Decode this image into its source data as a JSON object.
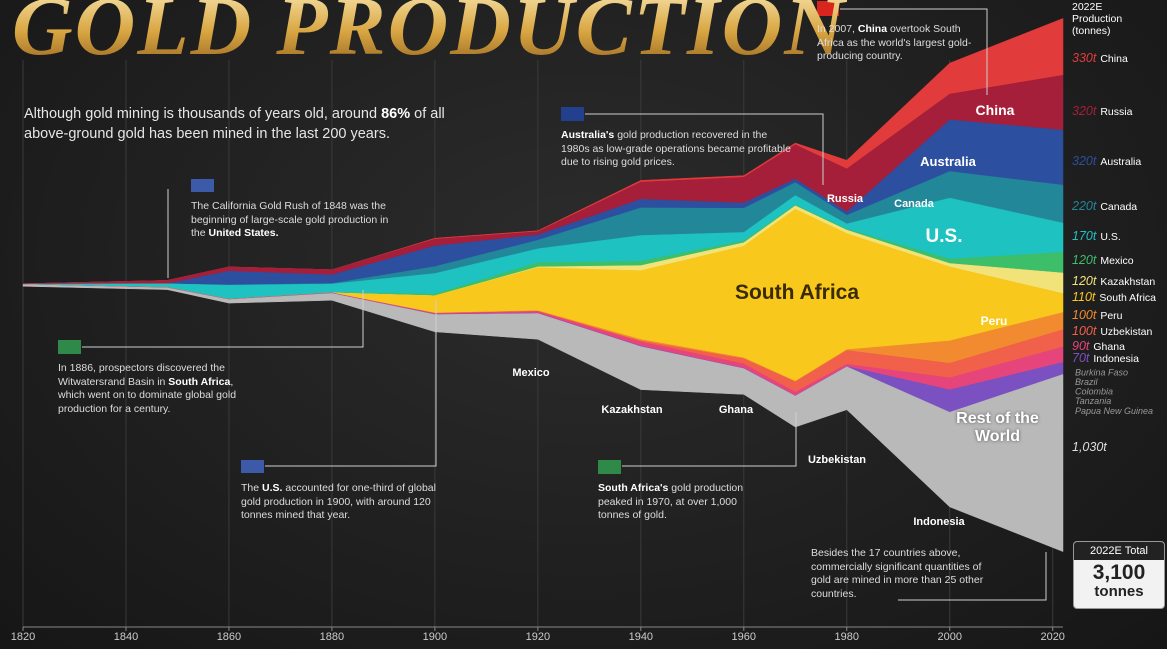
{
  "chart_data": {
    "type": "streamgraph",
    "title": "GOLD PRODUCTION",
    "subtitle": [
      "Although gold mining is thousands of years old, around ",
      "86%",
      " of all above-ground gold has been mined in the last 200 years."
    ],
    "x": [
      1820,
      1848,
      1860,
      1880,
      1900,
      1920,
      1940,
      1960,
      1970,
      1980,
      2000,
      2022
    ],
    "xlim": [
      1820,
      2022
    ],
    "xticks": [
      1820,
      1840,
      1860,
      1880,
      1900,
      1920,
      1940,
      1960,
      1980,
      2000,
      2020
    ],
    "grid": true,
    "legend_title": "2022E Production (tonnes)",
    "series": [
      {
        "name": "China",
        "color": "#e23b3b",
        "values": [
          0,
          0,
          0,
          0,
          5,
          5,
          10,
          10,
          10,
          50,
          180,
          330
        ],
        "value_labels": [
          null,
          null,
          null,
          null,
          null,
          null,
          null,
          null,
          null,
          null,
          null,
          "330t"
        ]
      },
      {
        "name": "Russia",
        "color": "#a51f3a",
        "values": [
          3,
          20,
          25,
          30,
          40,
          20,
          100,
          150,
          200,
          250,
          150,
          320
        ],
        "value_labels": [
          null,
          null,
          null,
          null,
          null,
          null,
          null,
          null,
          null,
          null,
          null,
          "320t"
        ]
      },
      {
        "name": "Australia",
        "color": "#2c4f9f",
        "values": [
          0,
          0,
          80,
          50,
          120,
          30,
          50,
          30,
          20,
          20,
          300,
          320
        ],
        "value_labels": [
          null,
          null,
          null,
          null,
          null,
          null,
          null,
          null,
          null,
          null,
          null,
          "320t"
        ]
      },
      {
        "name": "Canada",
        "color": "#23879a",
        "values": [
          0,
          0,
          1,
          3,
          40,
          50,
          160,
          140,
          75,
          50,
          155,
          220
        ],
        "value_labels": [
          null,
          null,
          null,
          null,
          null,
          null,
          null,
          null,
          null,
          null,
          null,
          "220t"
        ]
      },
      {
        "name": "U.S.",
        "color": "#1ec2c0",
        "values": [
          1,
          20,
          80,
          50,
          120,
          80,
          150,
          50,
          55,
          30,
          355,
          170
        ],
        "value_labels": [
          null,
          null,
          null,
          null,
          null,
          null,
          null,
          null,
          null,
          null,
          null,
          "170t"
        ]
      },
      {
        "name": "Mexico",
        "color": "#3dbf6a",
        "values": [
          0,
          2,
          2,
          2,
          10,
          25,
          25,
          10,
          5,
          6,
          25,
          120
        ],
        "value_labels": [
          null,
          null,
          null,
          null,
          null,
          null,
          null,
          null,
          null,
          null,
          null,
          "120t"
        ]
      },
      {
        "name": "Kazakhstan",
        "color": "#f2e27a",
        "values": [
          0,
          0,
          0,
          0,
          0,
          5,
          30,
          20,
          20,
          20,
          20,
          120
        ],
        "value_labels": [
          null,
          null,
          null,
          null,
          null,
          null,
          null,
          null,
          null,
          null,
          null,
          "120t"
        ]
      },
      {
        "name": "South Africa",
        "color": "#f8c81c",
        "values": [
          0,
          0,
          0,
          0,
          100,
          250,
          400,
          650,
          1000,
          675,
          430,
          110
        ],
        "value_labels": [
          null,
          null,
          null,
          null,
          null,
          null,
          null,
          null,
          null,
          null,
          null,
          "110t"
        ]
      },
      {
        "name": "Peru",
        "color": "#f28a30",
        "values": [
          0,
          0,
          0,
          0,
          2,
          4,
          8,
          5,
          4,
          5,
          130,
          100
        ],
        "value_labels": [
          null,
          null,
          null,
          null,
          null,
          null,
          null,
          null,
          null,
          null,
          null,
          "100t"
        ]
      },
      {
        "name": "Uzbekistan",
        "color": "#f0604a",
        "values": [
          0,
          0,
          0,
          0,
          0,
          0,
          5,
          30,
          60,
          80,
          85,
          100
        ],
        "value_labels": [
          null,
          null,
          null,
          null,
          null,
          null,
          null,
          null,
          null,
          null,
          null,
          "100t"
        ]
      },
      {
        "name": "Ghana",
        "color": "#e6457c",
        "values": [
          1,
          2,
          2,
          3,
          5,
          10,
          25,
          25,
          20,
          12,
          70,
          90
        ],
        "value_labels": [
          null,
          null,
          null,
          null,
          null,
          null,
          null,
          null,
          null,
          null,
          null,
          "90t"
        ]
      },
      {
        "name": "Indonesia",
        "color": "#7b50c0",
        "values": [
          0,
          0,
          0,
          0,
          2,
          2,
          3,
          2,
          2,
          2,
          130,
          70
        ],
        "value_labels": [
          null,
          null,
          null,
          null,
          null,
          null,
          null,
          null,
          null,
          null,
          null,
          "70t"
        ]
      },
      {
        "name": "Rest of the World",
        "color": "#b9b9b9",
        "values": [
          10,
          10,
          20,
          40,
          100,
          150,
          250,
          150,
          180,
          250,
          550,
          1030
        ],
        "value_labels": [
          null,
          null,
          null,
          null,
          null,
          null,
          null,
          null,
          null,
          null,
          null,
          "1,030t"
        ]
      }
    ],
    "minor_countries": [
      "Burkina Faso",
      "Brazil",
      "Colombia",
      "Tanzania",
      "Papua New Guinea"
    ],
    "annotations": [
      {
        "parts": [
          "The California Gold Rush of 1848 was the beginning of large-scale gold production in the ",
          "United States."
        ]
      },
      {
        "parts": [
          "In 1886, prospectors discovered the Witwatersrand Basin in ",
          "South Africa",
          ", which went on to dominate global gold production for a century."
        ]
      },
      {
        "parts": [
          "The ",
          "U.S.",
          " accounted for one-third of global gold production in 1900, with around 120 tonnes mined that year."
        ]
      },
      {
        "parts": [
          "",
          "Australia's",
          " gold production recovered in the 1980s as low-grade operations became profitable due to rising gold prices."
        ]
      },
      {
        "parts": [
          "",
          "South Africa's",
          " gold production peaked in 1970, at over 1,000 tonnes of gold."
        ]
      },
      {
        "parts": [
          "In 2007, ",
          "China",
          " overtook South Africa as the world's largest gold-producing country."
        ]
      },
      {
        "parts": [
          "Besides the 17 countries above, commercially significant quantities of gold are mined in more than 25 other countries."
        ]
      }
    ],
    "total": {
      "label": "2022E Total",
      "value": "3,100",
      "unit": "tonnes"
    }
  }
}
